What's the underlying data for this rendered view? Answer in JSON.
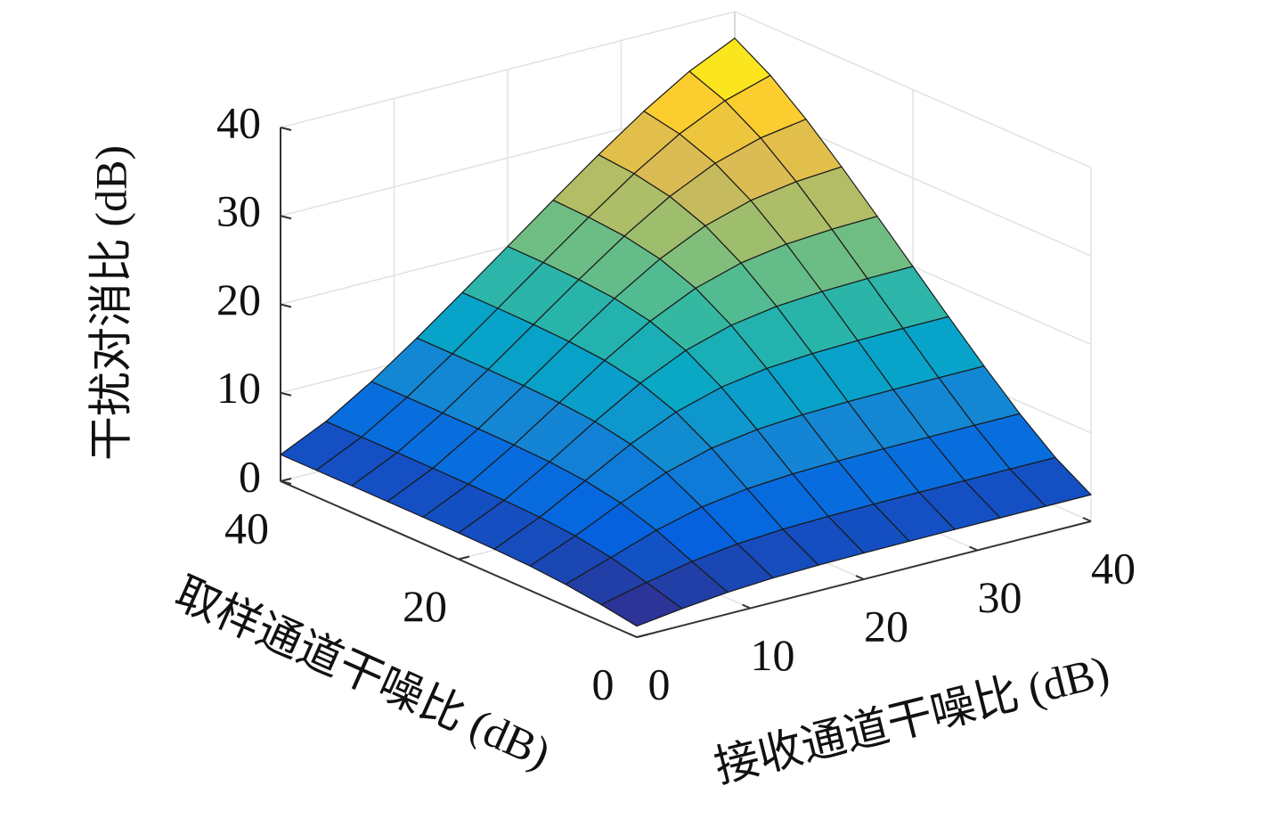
{
  "chart_data": {
    "type": "surface",
    "zlabel": "干扰对消比 (dB)",
    "xlabel": "接收通道干噪比 (dB)",
    "ylabel": "取样通道干噪比 (dB)",
    "x": [
      0,
      4,
      8,
      12,
      16,
      20,
      24,
      28,
      32,
      36,
      40
    ],
    "y": [
      0,
      4,
      8,
      12,
      16,
      20,
      24,
      28,
      32,
      36,
      40
    ],
    "z": [
      [
        1.25,
        1.92,
        2.45,
        2.76,
        2.9,
        2.97,
        2.99,
        3.0,
        3.01,
        3.01,
        3.01
      ],
      [
        1.92,
        3.11,
        4.17,
        4.85,
        5.2,
        5.35,
        5.41,
        5.44,
        5.45,
        5.45,
        5.45
      ],
      [
        2.45,
        4.17,
        5.94,
        7.26,
        8.01,
        8.38,
        8.53,
        8.6,
        8.62,
        8.63,
        8.64
      ],
      [
        2.76,
        4.85,
        7.26,
        9.39,
        10.84,
        11.63,
        12.0,
        12.16,
        12.22,
        12.25,
        12.26
      ],
      [
        2.9,
        5.2,
        8.01,
        10.84,
        13.15,
        14.66,
        15.47,
        15.84,
        16.0,
        16.07,
        16.09
      ],
      [
        2.97,
        5.35,
        8.38,
        11.63,
        14.66,
        17.05,
        18.59,
        19.41,
        19.78,
        19.94,
        20.0
      ],
      [
        2.99,
        5.41,
        8.53,
        12.0,
        15.47,
        18.59,
        21.01,
        22.56,
        23.38,
        23.75,
        23.91
      ],
      [
        3.0,
        5.44,
        8.6,
        12.16,
        15.84,
        19.41,
        22.56,
        25.0,
        26.55,
        27.37,
        27.74
      ],
      [
        3.01,
        5.45,
        8.62,
        12.22,
        16.0,
        19.78,
        23.38,
        26.55,
        28.99,
        30.55,
        31.36
      ],
      [
        3.01,
        5.45,
        8.63,
        12.25,
        16.07,
        19.94,
        23.75,
        27.37,
        30.55,
        32.99,
        34.55
      ],
      [
        3.01,
        5.45,
        8.64,
        12.26,
        16.09,
        20.0,
        23.91,
        27.74,
        31.36,
        34.55,
        36.99
      ]
    ],
    "xlim": [
      0,
      40
    ],
    "ylim": [
      0,
      40
    ],
    "zlim": [
      0,
      40
    ],
    "xticks": [
      0,
      10,
      20,
      30,
      40
    ],
    "yticks": [
      0,
      20,
      40
    ],
    "zticks": [
      0,
      10,
      20,
      30,
      40
    ],
    "colormap": "parula",
    "grid": true
  }
}
